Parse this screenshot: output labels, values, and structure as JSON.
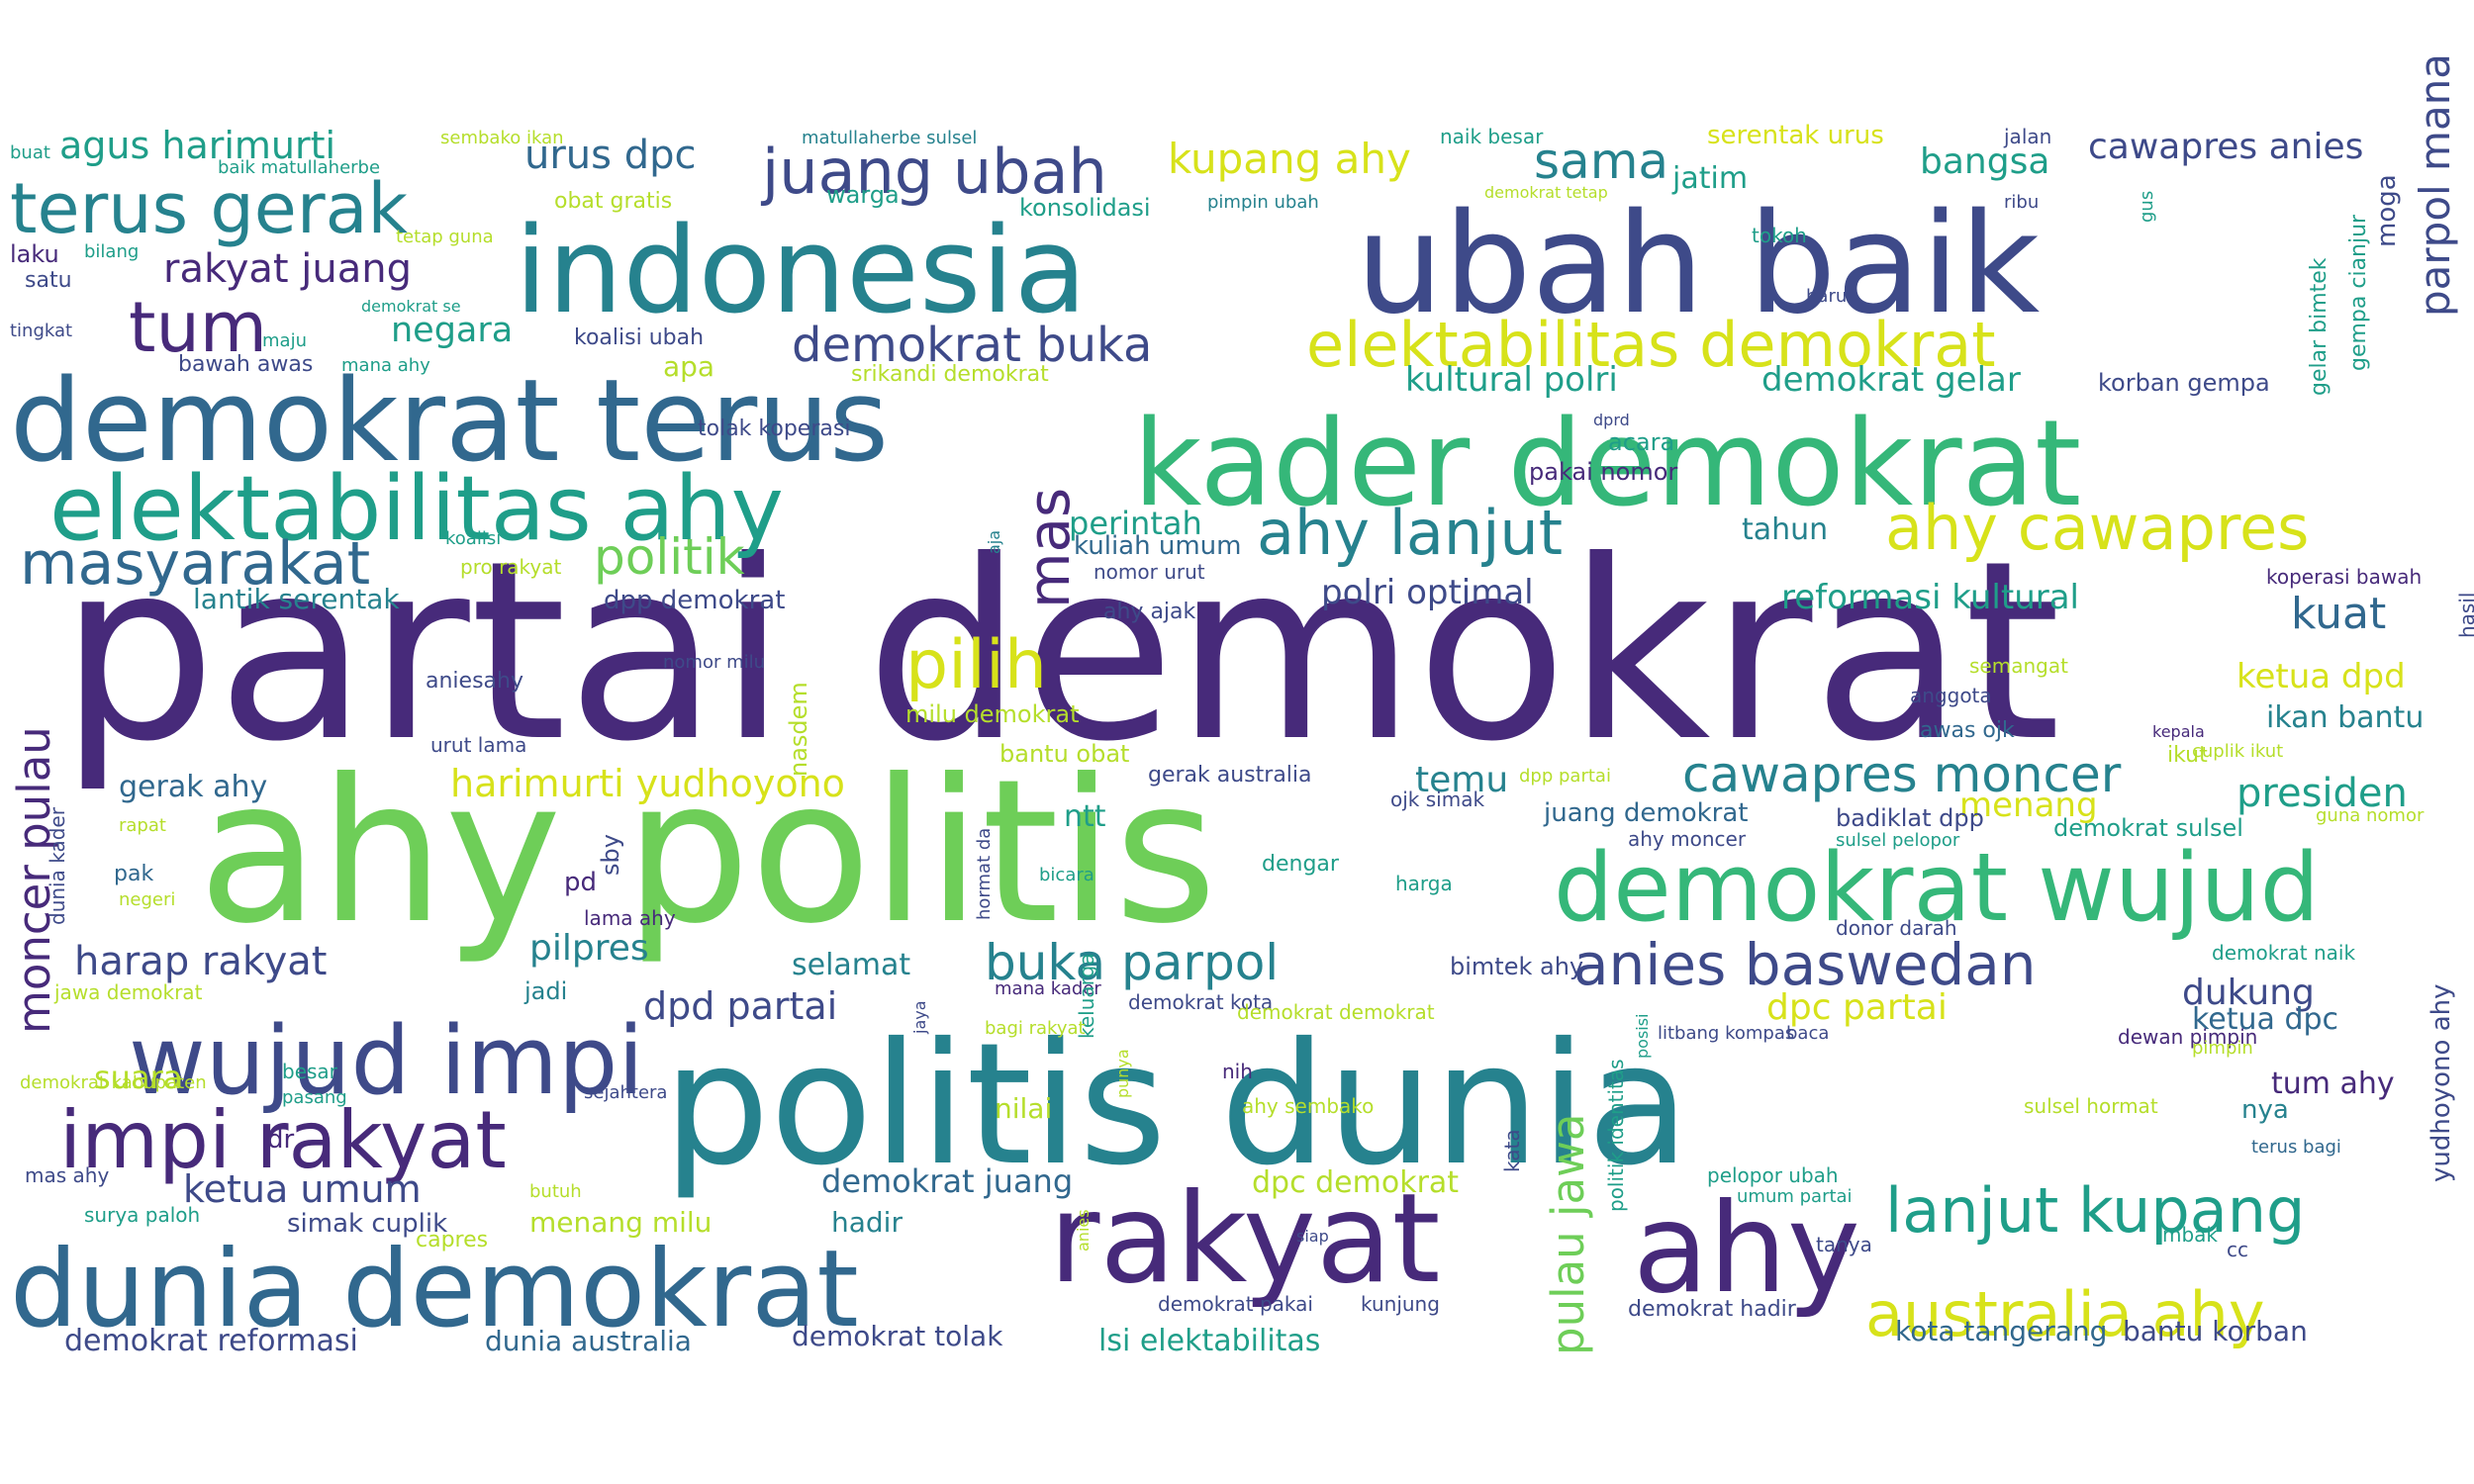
{
  "colors": {
    "purple": "#472a7a",
    "indigo": "#3e4a89",
    "blue": "#31688e",
    "teal": "#26828e",
    "cyan": "#1f9e89",
    "green": "#35b779",
    "lime": "#6ece58",
    "lgreen": "#b5de2b",
    "yellow": "#d7e21a",
    "dark": "#440154"
  },
  "words": [
    {
      "t": "partai demokrat",
      "c": "purple"
    },
    {
      "t": "ahy politis",
      "c": "lime"
    },
    {
      "t": "politis dunia",
      "c": "teal"
    },
    {
      "t": "ubah baik",
      "c": "indigo"
    },
    {
      "t": "indonesia",
      "c": "teal"
    },
    {
      "t": "kader demokrat",
      "c": "green"
    },
    {
      "t": "demokrat terus",
      "c": "blue"
    },
    {
      "t": "dunia demokrat",
      "c": "blue"
    },
    {
      "t": "rakyat",
      "c": "purple"
    },
    {
      "t": "ahy",
      "c": "purple"
    },
    {
      "t": "demokrat wujud",
      "c": "green"
    },
    {
      "t": "elektabilitas ahy",
      "c": "cyan"
    },
    {
      "t": "wujud impi",
      "c": "indigo"
    },
    {
      "t": "impi rakyat",
      "c": "purple"
    },
    {
      "t": "terus gerak",
      "c": "teal"
    },
    {
      "t": "juang ubah",
      "c": "indigo"
    },
    {
      "t": "elektabilitas demokrat",
      "c": "yellow"
    },
    {
      "t": "ahy cawapres",
      "c": "yellow"
    },
    {
      "t": "ahy lanjut",
      "c": "teal"
    },
    {
      "t": "lanjut kupang",
      "c": "cyan"
    },
    {
      "t": "australia ahy",
      "c": "yellow"
    },
    {
      "t": "anies baswedan",
      "c": "indigo"
    },
    {
      "t": "cawapres moncer",
      "c": "teal"
    },
    {
      "t": "masyarakat",
      "c": "blue"
    },
    {
      "t": "tum",
      "c": "purple"
    },
    {
      "t": "pilih",
      "c": "yellow"
    },
    {
      "t": "buka parpol",
      "c": "teal"
    },
    {
      "t": "pulau jawa",
      "c": "lime"
    },
    {
      "t": "moncer pulau",
      "c": "purple"
    },
    {
      "t": "parpol mana",
      "c": "indigo"
    },
    {
      "t": "mas",
      "c": "purple"
    },
    {
      "t": "politik",
      "c": "lime"
    },
    {
      "t": "agus harimurti",
      "c": "cyan"
    },
    {
      "t": "rakyat juang",
      "c": "purple"
    },
    {
      "t": "kupang ahy",
      "c": "yellow"
    },
    {
      "t": "sama",
      "c": "teal"
    },
    {
      "t": "demokrat buka",
      "c": "indigo"
    },
    {
      "t": "harap rakyat",
      "c": "indigo"
    },
    {
      "t": "ketua umum",
      "c": "indigo"
    },
    {
      "t": "dpd partai",
      "c": "indigo"
    },
    {
      "t": "dpc partai",
      "c": "yellow"
    },
    {
      "t": "dukung",
      "c": "indigo"
    },
    {
      "t": "presiden",
      "c": "cyan"
    },
    {
      "t": "kuat",
      "c": "blue"
    },
    {
      "t": "harimurti yudhoyono",
      "c": "yellow"
    },
    {
      "t": "urus dpc",
      "c": "blue"
    },
    {
      "t": "bangsa",
      "c": "cyan"
    },
    {
      "t": "cawapres anies",
      "c": "indigo"
    },
    {
      "t": "negara",
      "c": "cyan"
    },
    {
      "t": "kultural polri",
      "c": "cyan"
    },
    {
      "t": "demokrat gelar",
      "c": "cyan"
    },
    {
      "t": "reformasi kultural",
      "c": "cyan"
    },
    {
      "t": "polri optimal",
      "c": "indigo"
    },
    {
      "t": "ketua dpd",
      "c": "yellow"
    },
    {
      "t": "ikan bantu",
      "c": "teal"
    },
    {
      "t": "perintah",
      "c": "cyan"
    },
    {
      "t": "temu",
      "c": "teal"
    },
    {
      "t": "menang",
      "c": "yellow"
    },
    {
      "t": "pilpres",
      "c": "teal"
    },
    {
      "t": "selamat",
      "c": "teal"
    },
    {
      "t": "suara",
      "c": "lgreen"
    },
    {
      "t": "demokrat juang",
      "c": "blue"
    },
    {
      "t": "dpc demokrat",
      "c": "lgreen"
    },
    {
      "t": "ketua dpc",
      "c": "blue"
    },
    {
      "t": "tum ahy",
      "c": "purple"
    },
    {
      "t": "demokrat reformasi",
      "c": "indigo"
    },
    {
      "t": "dunia australia",
      "c": "blue"
    },
    {
      "t": "demokrat tolak",
      "c": "indigo"
    },
    {
      "t": "lsi elektabilitas",
      "c": "cyan"
    },
    {
      "t": "kota tangerang",
      "c": "blue"
    },
    {
      "t": "bantu korban",
      "c": "indigo"
    },
    {
      "t": "menang milu",
      "c": "lgreen"
    },
    {
      "t": "hadir",
      "c": "teal"
    },
    {
      "t": "nilai",
      "c": "lgreen"
    },
    {
      "t": "gerak ahy",
      "c": "blue"
    },
    {
      "t": "lantik serentak",
      "c": "teal"
    },
    {
      "t": "dpp demokrat",
      "c": "indigo"
    },
    {
      "t": "simak cuplik",
      "c": "indigo"
    },
    {
      "t": "juang demokrat",
      "c": "blue"
    },
    {
      "t": "badiklat dpp",
      "c": "indigo"
    },
    {
      "t": "demokrat sulsel",
      "c": "cyan"
    },
    {
      "t": "bimtek ahy",
      "c": "indigo"
    },
    {
      "t": "gelar bimtek",
      "c": "cyan"
    },
    {
      "t": "gempa cianjur",
      "c": "cyan"
    },
    {
      "t": "moga",
      "c": "indigo"
    },
    {
      "t": "yudhoyono ahy",
      "c": "indigo"
    },
    {
      "t": "hasil",
      "c": "indigo"
    },
    {
      "t": "sby",
      "c": "indigo"
    },
    {
      "t": "pd",
      "c": "purple"
    },
    {
      "t": "dr",
      "c": "purple"
    },
    {
      "t": "nasdem",
      "c": "lgreen"
    },
    {
      "t": "jatim",
      "c": "cyan"
    },
    {
      "t": "koalisi ubah",
      "c": "indigo"
    },
    {
      "t": "tahun",
      "c": "teal"
    },
    {
      "t": "apa",
      "c": "lgreen"
    },
    {
      "t": "ntt",
      "c": "cyan"
    },
    {
      "t": "korban gempa",
      "c": "indigo"
    },
    {
      "t": "kuliah umum",
      "c": "blue"
    },
    {
      "t": "acara",
      "c": "cyan"
    },
    {
      "t": "pakai nomor",
      "c": "purple"
    },
    {
      "t": "konsolidasi",
      "c": "cyan"
    },
    {
      "t": "warga",
      "c": "cyan"
    },
    {
      "t": "milu demokrat",
      "c": "lgreen"
    },
    {
      "t": "bantu obat",
      "c": "lgreen"
    },
    {
      "t": "gerak australia",
      "c": "indigo"
    },
    {
      "t": "jawa demokrat",
      "c": "lgreen"
    },
    {
      "t": "dunia kader",
      "c": "indigo"
    },
    {
      "t": "pak",
      "c": "blue"
    },
    {
      "t": "jadi",
      "c": "teal"
    },
    {
      "t": "bawah awas",
      "c": "indigo"
    },
    {
      "t": "laku",
      "c": "purple"
    },
    {
      "t": "satu",
      "c": "indigo"
    },
    {
      "t": "tingkat",
      "c": "indigo"
    },
    {
      "t": "buat",
      "c": "cyan"
    },
    {
      "t": "bilang",
      "c": "cyan"
    },
    {
      "t": "maju",
      "c": "cyan"
    },
    {
      "t": "mana ahy",
      "c": "cyan"
    },
    {
      "t": "baik matullaherbe",
      "c": "cyan"
    },
    {
      "t": "sembako ikan",
      "c": "lgreen"
    },
    {
      "t": "matullaherbe sulsel",
      "c": "teal"
    },
    {
      "t": "naik besar",
      "c": "cyan"
    },
    {
      "t": "serentak urus",
      "c": "yellow"
    },
    {
      "t": "jalan",
      "c": "indigo"
    },
    {
      "t": "obat gratis",
      "c": "lgreen"
    },
    {
      "t": "pimpin ubah",
      "c": "teal"
    },
    {
      "t": "demokrat tetap",
      "c": "lgreen"
    },
    {
      "t": "ribu",
      "c": "indigo"
    },
    {
      "t": "gus",
      "c": "cyan"
    },
    {
      "t": "tetap guna",
      "c": "lgreen"
    },
    {
      "t": "tokoh",
      "c": "cyan"
    },
    {
      "t": "baru",
      "c": "indigo"
    },
    {
      "t": "demokrat se",
      "c": "cyan"
    },
    {
      "t": "dprd",
      "c": "indigo"
    },
    {
      "t": "srikandi demokrat",
      "c": "lgreen"
    },
    {
      "t": "tolak koperasi",
      "c": "indigo"
    },
    {
      "t": "aja",
      "c": "teal"
    },
    {
      "t": "koalisi",
      "c": "cyan"
    },
    {
      "t": "pro rakyat",
      "c": "lgreen"
    },
    {
      "t": "nomor urut",
      "c": "indigo"
    },
    {
      "t": "ahy ajak",
      "c": "indigo"
    },
    {
      "t": "koperasi bawah",
      "c": "purple"
    },
    {
      "t": "nomor milu",
      "c": "indigo"
    },
    {
      "t": "semangat",
      "c": "lgreen"
    },
    {
      "t": "anggota",
      "c": "indigo"
    },
    {
      "t": "aniesahy",
      "c": "indigo"
    },
    {
      "t": "awas ojk",
      "c": "blue"
    },
    {
      "t": "kepala",
      "c": "purple"
    },
    {
      "t": "ikut",
      "c": "lgreen"
    },
    {
      "t": "cuplik ikut",
      "c": "lgreen"
    },
    {
      "t": "urut lama",
      "c": "indigo"
    },
    {
      "t": "dpp partai",
      "c": "lgreen"
    },
    {
      "t": "ojk simak",
      "c": "indigo"
    },
    {
      "t": "sulsel pelopor",
      "c": "cyan"
    },
    {
      "t": "ahy moncer",
      "c": "indigo"
    },
    {
      "t": "guna nomor",
      "c": "lgreen"
    },
    {
      "t": "rapat",
      "c": "lgreen"
    },
    {
      "t": "negeri",
      "c": "lgreen"
    },
    {
      "t": "hormat da",
      "c": "indigo"
    },
    {
      "t": "bicara",
      "c": "cyan"
    },
    {
      "t": "dengar",
      "c": "cyan"
    },
    {
      "t": "harga",
      "c": "cyan"
    },
    {
      "t": "donor darah",
      "c": "indigo"
    },
    {
      "t": "demokrat naik",
      "c": "cyan"
    },
    {
      "t": "lama ahy",
      "c": "purple"
    },
    {
      "t": "mana kader",
      "c": "purple"
    },
    {
      "t": "demokrat kota",
      "c": "indigo"
    },
    {
      "t": "keluarga",
      "c": "cyan"
    },
    {
      "t": "jaya",
      "c": "indigo"
    },
    {
      "t": "bagi rakyat",
      "c": "lgreen"
    },
    {
      "t": "demokrat demokrat",
      "c": "lgreen"
    },
    {
      "t": "politik identitas",
      "c": "cyan"
    },
    {
      "t": "posisi",
      "c": "cyan"
    },
    {
      "t": "litbang kompas",
      "c": "indigo"
    },
    {
      "t": "baca",
      "c": "indigo"
    },
    {
      "t": "dewan pimpin",
      "c": "purple"
    },
    {
      "t": "pimpin",
      "c": "lgreen"
    },
    {
      "t": "nya",
      "c": "teal"
    },
    {
      "t": "demokrat kabupaten",
      "c": "lgreen"
    },
    {
      "t": "besar",
      "c": "cyan"
    },
    {
      "t": "sejahtera",
      "c": "indigo"
    },
    {
      "t": "pasang",
      "c": "cyan"
    },
    {
      "t": "punya",
      "c": "lgreen"
    },
    {
      "t": "nih",
      "c": "purple"
    },
    {
      "t": "ahy sembako",
      "c": "lgreen"
    },
    {
      "t": "kata",
      "c": "indigo"
    },
    {
      "t": "sulsel hormat",
      "c": "lgreen"
    },
    {
      "t": "terus bagi",
      "c": "blue"
    },
    {
      "t": "mas ahy",
      "c": "indigo"
    },
    {
      "t": "butuh",
      "c": "lgreen"
    },
    {
      "t": "pelopor ubah",
      "c": "cyan"
    },
    {
      "t": "umum partai",
      "c": "cyan"
    },
    {
      "t": "surya paloh",
      "c": "cyan"
    },
    {
      "t": "mbak",
      "c": "cyan"
    },
    {
      "t": "siap",
      "c": "indigo"
    },
    {
      "t": "tanya",
      "c": "indigo"
    },
    {
      "t": "cc",
      "c": "indigo"
    },
    {
      "t": "capres",
      "c": "lgreen"
    },
    {
      "t": "anies",
      "c": "lgreen"
    },
    {
      "t": "demokrat pakai",
      "c": "indigo"
    },
    {
      "t": "kunjung",
      "c": "indigo"
    },
    {
      "t": "demokrat hadir",
      "c": "indigo"
    }
  ]
}
